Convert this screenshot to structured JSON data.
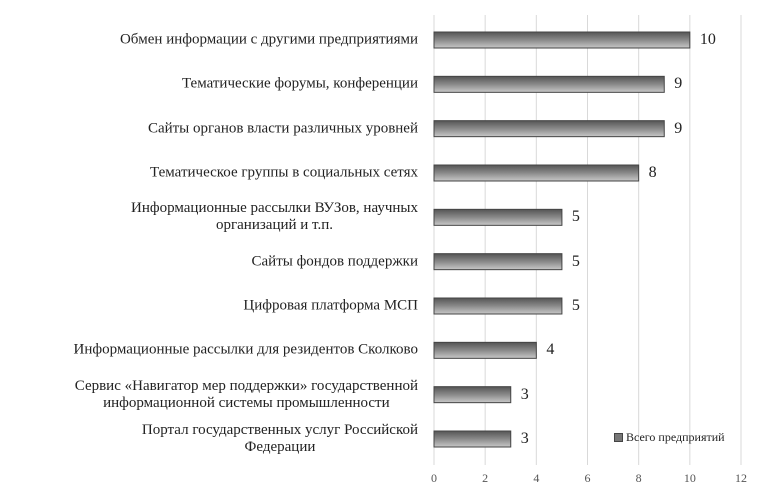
{
  "chart_data": {
    "type": "bar",
    "orientation": "horizontal",
    "categories": [
      "Обмен информации с другими предприятиями",
      "Тематические форумы, конференции",
      "Сайты органов власти различных уровней",
      "Тематическое группы в социальных сетях",
      "Информационные рассылки ВУЗов, научных\nорганизаций и т.п.",
      "Сайты фондов поддержки",
      "Цифровая платформа МСП",
      "Информационные рассылки для резидентов Сколково",
      "Сервис «Навигатор мер поддержки» государственной\nинформационной системы промышленности",
      "Портал государственных услуг Российской\nФедерации"
    ],
    "series": [
      {
        "name": "Всего предприятий",
        "values": [
          10,
          9,
          9,
          8,
          5,
          5,
          5,
          4,
          3,
          3
        ],
        "color": "#777777"
      }
    ],
    "xlim": [
      0,
      12
    ],
    "xticks": [
      "0",
      "2",
      "4",
      "6",
      "8",
      "10",
      "12"
    ],
    "grid": true,
    "legend_position": "bottom-right",
    "data_labels": true
  }
}
